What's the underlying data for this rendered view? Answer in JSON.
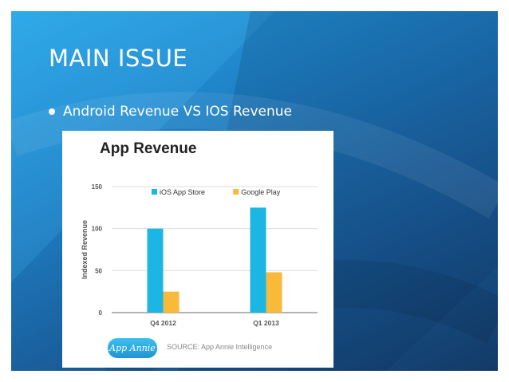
{
  "slide": {
    "title": "MAIN ISSUE",
    "bullets": [
      "Android Revenue VS IOS Revenue"
    ]
  },
  "chart_data": {
    "type": "bar",
    "title": "App Revenue",
    "xlabel": "",
    "ylabel": "Indexed Revenue",
    "ylim": [
      0,
      150
    ],
    "yticks": [
      0,
      50,
      100,
      150
    ],
    "categories": [
      "Q4 2012",
      "Q1 2013"
    ],
    "series": [
      {
        "name": "iOS App Store",
        "color": "#1cb6e4",
        "values": [
          100,
          125
        ]
      },
      {
        "name": "Google Play",
        "color": "#f9b93a",
        "values": [
          25,
          48
        ]
      }
    ],
    "grid": true,
    "legend": "top",
    "source": "SOURCE: App Annie Intelligence",
    "logo_text": "App Annie"
  }
}
